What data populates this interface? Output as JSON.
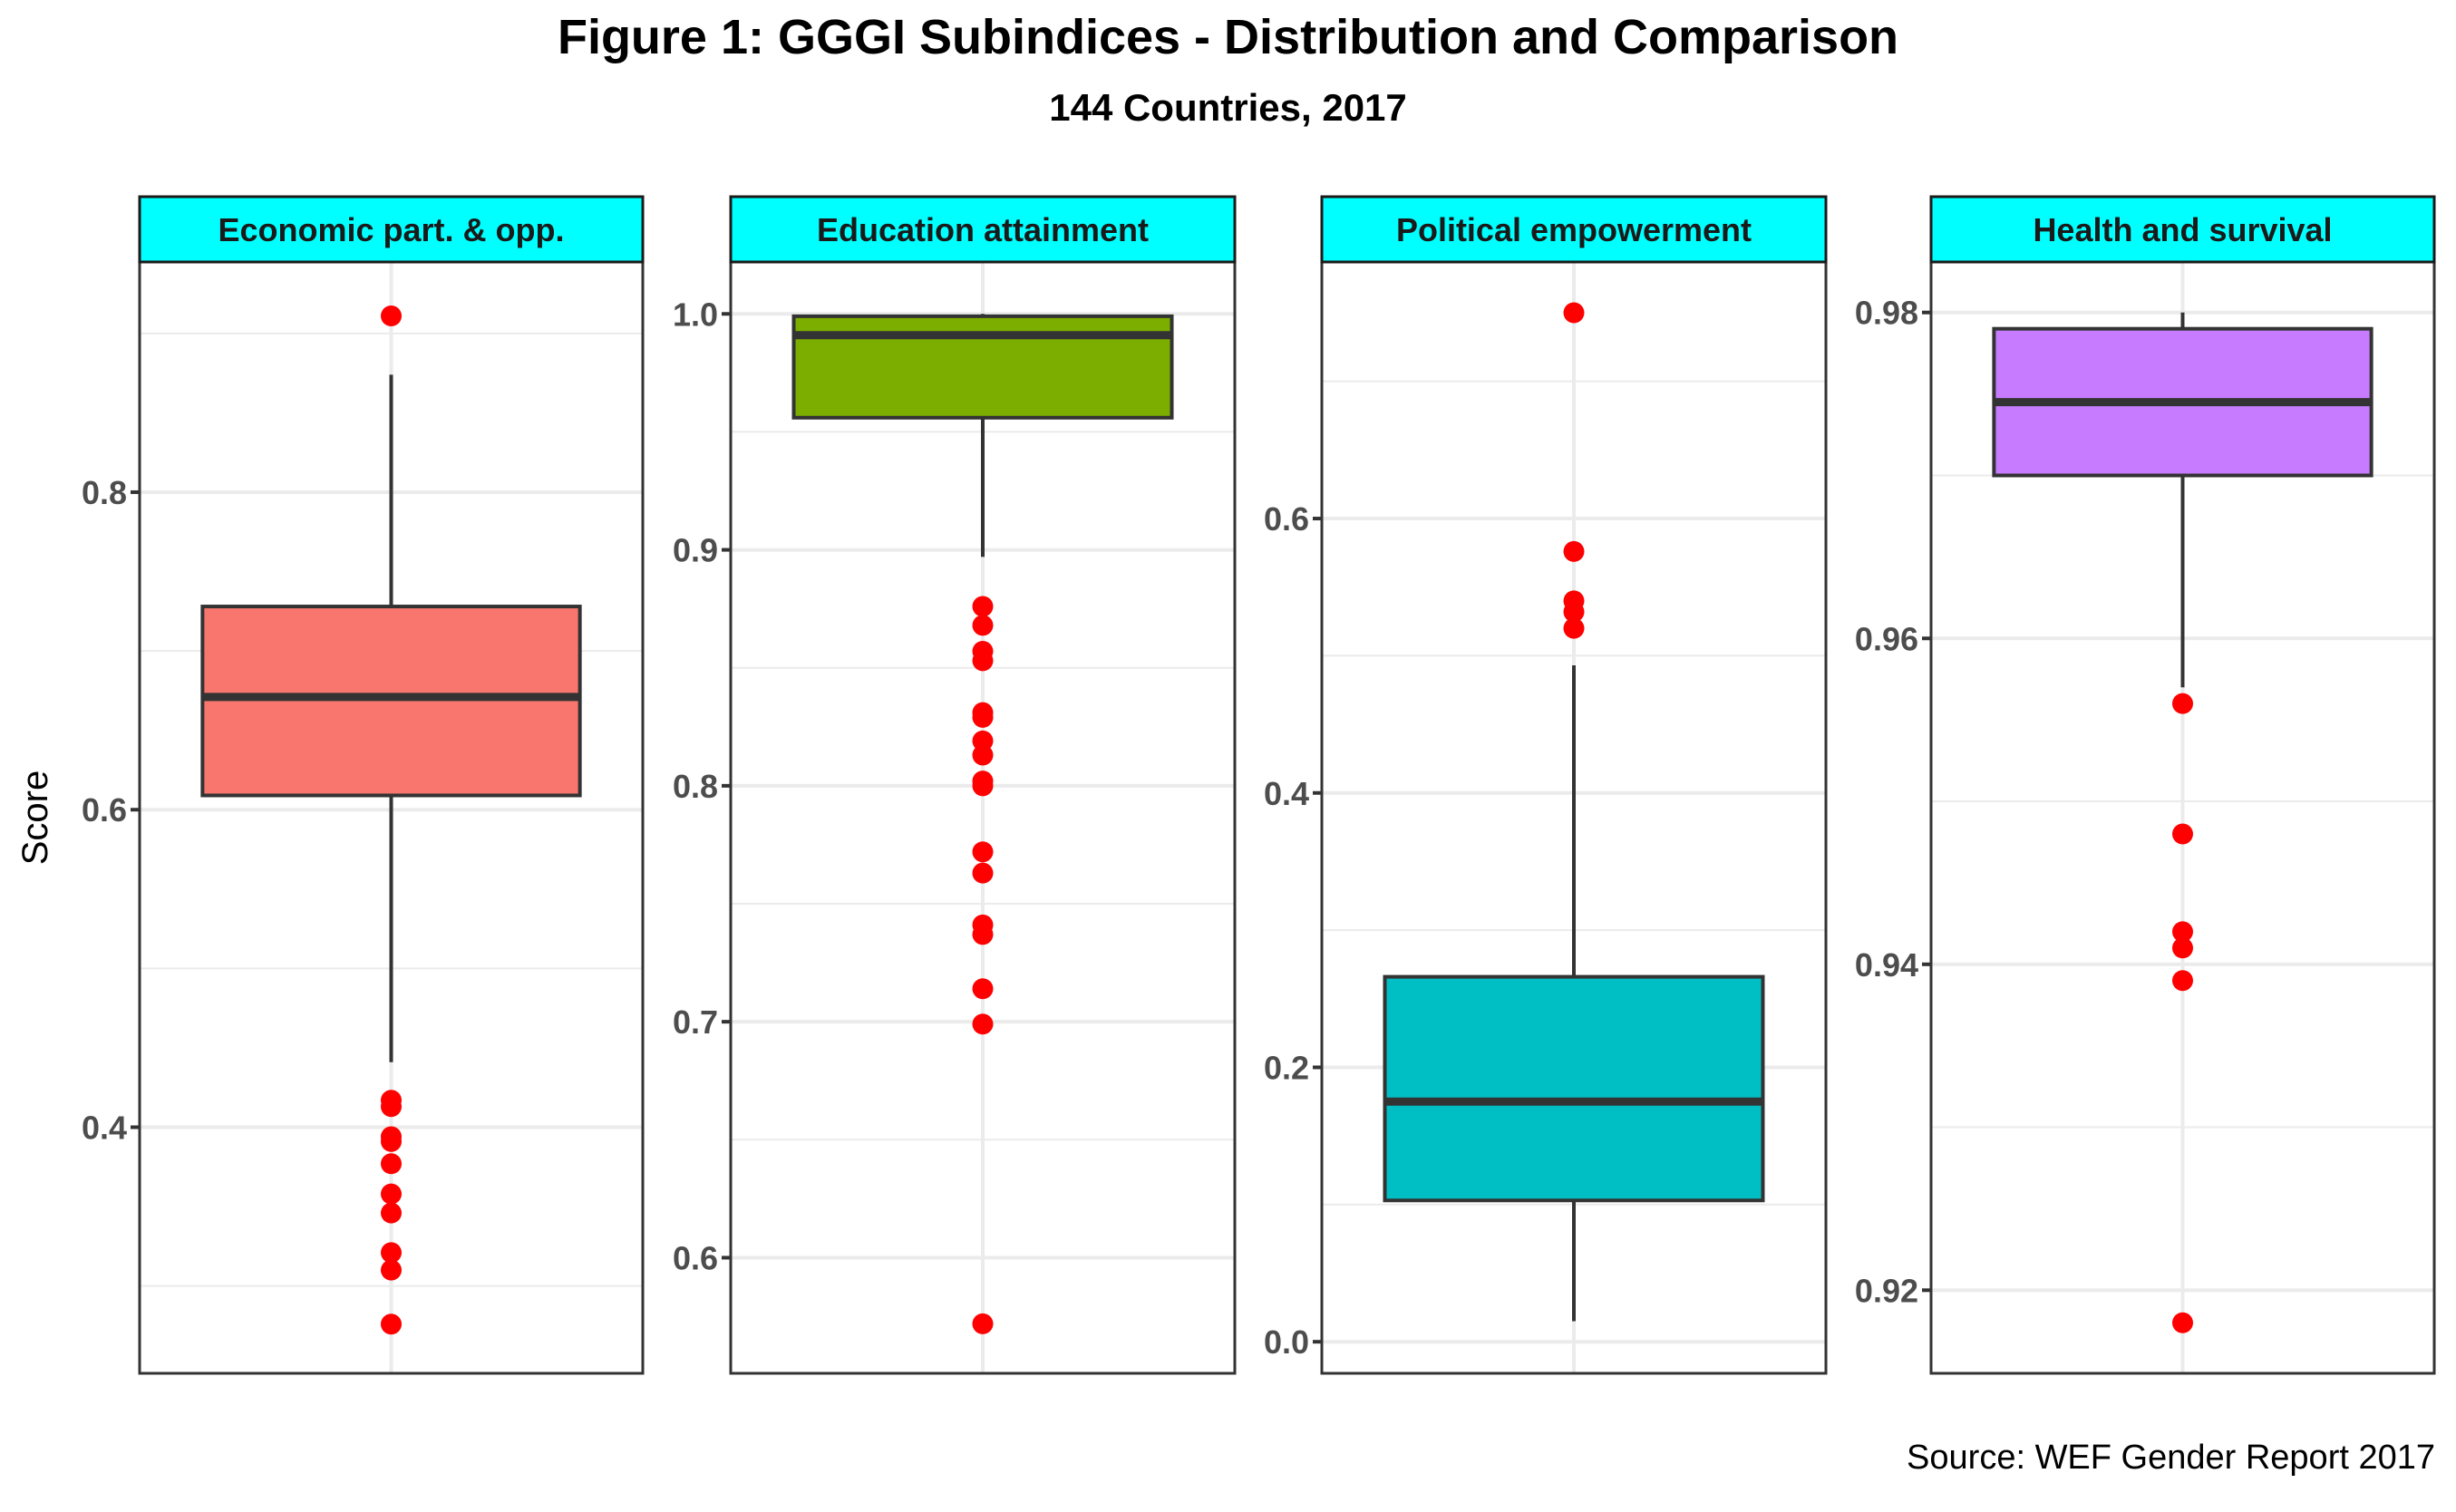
{
  "chart_data": {
    "type": "boxplot",
    "title": "Figure 1: GGGI Subindices - Distribution and Comparison",
    "subtitle": "144 Countries, 2017",
    "ylabel": "Score",
    "xlabel": "",
    "caption": "Source: WEF Gender Report 2017",
    "grid": true,
    "facets": [
      {
        "name": "Economic part. & opp.",
        "fill": "#F8766D",
        "ylim": [
          0.245,
          0.945
        ],
        "ticks": [
          0.4,
          0.6,
          0.8
        ],
        "tick_labels": [
          "0.4",
          "0.6",
          "0.8"
        ],
        "minor_ticks": [
          0.3,
          0.5,
          0.7,
          0.9
        ],
        "box": {
          "lower_whisker": 0.441,
          "q1": 0.609,
          "median": 0.671,
          "q3": 0.728,
          "upper_whisker": 0.874
        },
        "outliers": [
          0.911,
          0.417,
          0.413,
          0.394,
          0.391,
          0.377,
          0.358,
          0.346,
          0.321,
          0.31,
          0.276
        ]
      },
      {
        "name": "Education attainment",
        "fill": "#7CAE00",
        "ylim": [
          0.551,
          1.022
        ],
        "ticks": [
          0.6,
          0.7,
          0.8,
          0.9,
          1.0
        ],
        "tick_labels": [
          "0.6",
          "0.7",
          "0.8",
          "0.9",
          "1.0"
        ],
        "minor_ticks": [
          0.65,
          0.75,
          0.85,
          0.95
        ],
        "box": {
          "lower_whisker": 0.897,
          "q1": 0.956,
          "median": 0.991,
          "q3": 0.999,
          "upper_whisker": 1.0
        },
        "outliers": [
          0.876,
          0.868,
          0.857,
          0.853,
          0.831,
          0.829,
          0.819,
          0.813,
          0.802,
          0.8,
          0.772,
          0.763,
          0.741,
          0.737,
          0.714,
          0.699,
          0.572
        ]
      },
      {
        "name": "Political empowerment",
        "fill": "#00BFC4",
        "ylim": [
          -0.023,
          0.787
        ],
        "ticks": [
          0.0,
          0.2,
          0.4,
          0.6
        ],
        "tick_labels": [
          "0.0",
          "0.2",
          "0.4",
          "0.6"
        ],
        "minor_ticks": [
          0.1,
          0.3,
          0.5,
          0.7
        ],
        "box": {
          "lower_whisker": 0.015,
          "q1": 0.103,
          "median": 0.175,
          "q3": 0.266,
          "upper_whisker": 0.493
        },
        "outliers": [
          0.75,
          0.576,
          0.54,
          0.532,
          0.52
        ]
      },
      {
        "name": "Health and survival",
        "fill": "#C77CFF",
        "ylim": [
          0.9149,
          0.9831
        ],
        "ticks": [
          0.92,
          0.94,
          0.96,
          0.98
        ],
        "tick_labels": [
          "0.92",
          "0.94",
          "0.96",
          "0.98"
        ],
        "minor_ticks": [
          0.93,
          0.95,
          0.97
        ],
        "box": {
          "lower_whisker": 0.957,
          "q1": 0.97,
          "median": 0.9745,
          "q3": 0.979,
          "upper_whisker": 0.98
        },
        "outliers": [
          0.956,
          0.948,
          0.942,
          0.941,
          0.939,
          0.918
        ]
      }
    ]
  },
  "colors": {
    "strip_fill": "#00FFFF",
    "outlier": "#FF0000",
    "box_line": "#333333",
    "grid": "#EBEBEB",
    "panel_border": "#333333",
    "tick_label": "#4D4D4D"
  }
}
